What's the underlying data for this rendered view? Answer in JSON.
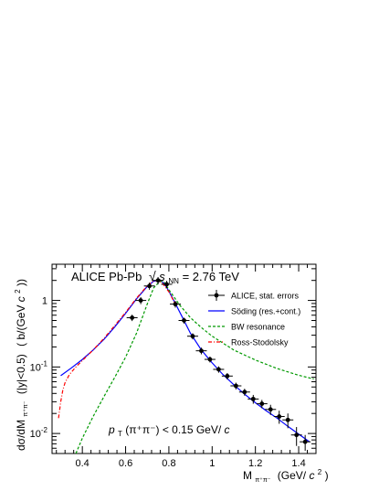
{
  "chart_data": {
    "type": "line",
    "title": "",
    "header": {
      "experiment": "ALICE Pb-Pb",
      "energy_var": "s",
      "energy_sub": "NN",
      "energy_value": " = 2.76 TeV"
    },
    "xlabel": {
      "main": "M",
      "sub": "π⁺π⁻",
      "unit_open": "(GeV/",
      "unit_c": "c",
      "unit_sup": "2",
      "unit_close": ")"
    },
    "ylabel": {
      "main": "dσ/dM",
      "sub": "π⁺π⁻",
      "cut": "(|y|<0.5)",
      "unit_open": "(",
      "unit_sym": "b/(GeV ",
      "unit_c": "c",
      "unit_sup": "2",
      "unit_close": "))"
    },
    "x_scale": "linear",
    "y_scale": "log",
    "xlim": [
      0.26,
      1.48
    ],
    "ylim": [
      0.005,
      3.5
    ],
    "x_ticks": [
      0.4,
      0.6,
      0.8,
      1.0,
      1.2,
      1.4
    ],
    "x_tick_labels": [
      "0.4",
      "0.6",
      "0.8",
      "1",
      "1.2",
      "1.4"
    ],
    "y_ticks": [
      0.01,
      0.1,
      1
    ],
    "y_tick_labels": [
      {
        "base": "10",
        "exp": "-2"
      },
      {
        "base": "10",
        "exp": "-1"
      },
      {
        "base": "1",
        "exp": ""
      }
    ],
    "annotation": {
      "p": "p",
      "sub": "T",
      "rest": "(π⁺π⁻) < 0.15 GeV/",
      "c": "c"
    },
    "legend_position": "top-right",
    "legend": [
      {
        "label": "ALICE, stat. errors",
        "style": "marker",
        "color": "#000000"
      },
      {
        "label": "Söding (res.+cont.)",
        "style": "solid",
        "color": "#0000ff"
      },
      {
        "label": "BW resonance",
        "style": "dashed",
        "color": "#009900"
      },
      {
        "label": "Ross-Stodolsky",
        "style": "dashdot",
        "color": "#ff0000"
      }
    ],
    "series": [
      {
        "name": "ALICE, stat. errors",
        "kind": "points",
        "color": "#000000",
        "x": [
          0.63,
          0.67,
          0.71,
          0.75,
          0.79,
          0.83,
          0.87,
          0.91,
          0.95,
          0.99,
          1.03,
          1.07,
          1.11,
          1.15,
          1.19,
          1.23,
          1.27,
          1.31,
          1.35,
          1.39,
          1.43
        ],
        "y": [
          0.55,
          1.0,
          1.65,
          2.0,
          1.75,
          0.88,
          0.5,
          0.29,
          0.175,
          0.13,
          0.092,
          0.073,
          0.052,
          0.042,
          0.033,
          0.028,
          0.023,
          0.018,
          0.016,
          0.0095,
          0.0075
        ],
        "y_err": [
          0.06,
          0.12,
          0.2,
          0.25,
          0.22,
          0.1,
          0.05,
          0.03,
          0.02,
          0.013,
          0.01,
          0.008,
          0.006,
          0.005,
          0.005,
          0.004,
          0.004,
          0.004,
          0.004,
          0.003,
          0.002
        ]
      },
      {
        "name": "Söding (res.+cont.)",
        "kind": "curve",
        "color": "#0000ff",
        "style": "solid",
        "x": [
          0.3,
          0.35,
          0.4,
          0.45,
          0.5,
          0.55,
          0.6,
          0.65,
          0.7,
          0.73,
          0.76,
          0.78,
          0.8,
          0.83,
          0.86,
          0.9,
          0.95,
          1.0,
          1.05,
          1.1,
          1.15,
          1.2,
          1.25,
          1.3,
          1.35,
          1.4,
          1.45
        ],
        "y": [
          0.074,
          0.097,
          0.13,
          0.18,
          0.26,
          0.4,
          0.64,
          1.05,
          1.62,
          1.95,
          2.0,
          1.78,
          1.38,
          0.9,
          0.58,
          0.32,
          0.18,
          0.115,
          0.077,
          0.054,
          0.039,
          0.029,
          0.022,
          0.017,
          0.0128,
          0.0098,
          0.0075
        ]
      },
      {
        "name": "BW resonance",
        "kind": "curve",
        "color": "#009900",
        "style": "dashed",
        "x": [
          0.37,
          0.4,
          0.45,
          0.5,
          0.55,
          0.6,
          0.65,
          0.7,
          0.73,
          0.76,
          0.78,
          0.8,
          0.85,
          0.9,
          0.95,
          1.0,
          1.1,
          1.2,
          1.3,
          1.4,
          1.47
        ],
        "y": [
          0.005,
          0.0085,
          0.018,
          0.036,
          0.07,
          0.14,
          0.32,
          0.88,
          1.55,
          1.95,
          1.85,
          1.45,
          0.85,
          0.55,
          0.39,
          0.29,
          0.18,
          0.127,
          0.095,
          0.075,
          0.066
        ]
      },
      {
        "name": "Ross-Stodolsky",
        "kind": "curve",
        "color": "#ff0000",
        "style": "dashdot",
        "x": [
          0.29,
          0.3,
          0.31,
          0.32,
          0.34,
          0.37,
          0.4,
          0.45,
          0.5,
          0.55,
          0.6,
          0.65,
          0.7,
          0.73,
          0.75,
          0.77,
          0.8,
          0.83
        ],
        "y": [
          0.017,
          0.03,
          0.045,
          0.058,
          0.077,
          0.1,
          0.125,
          0.18,
          0.27,
          0.42,
          0.66,
          1.08,
          1.66,
          1.97,
          2.0,
          1.82,
          1.35,
          0.88
        ]
      }
    ]
  }
}
